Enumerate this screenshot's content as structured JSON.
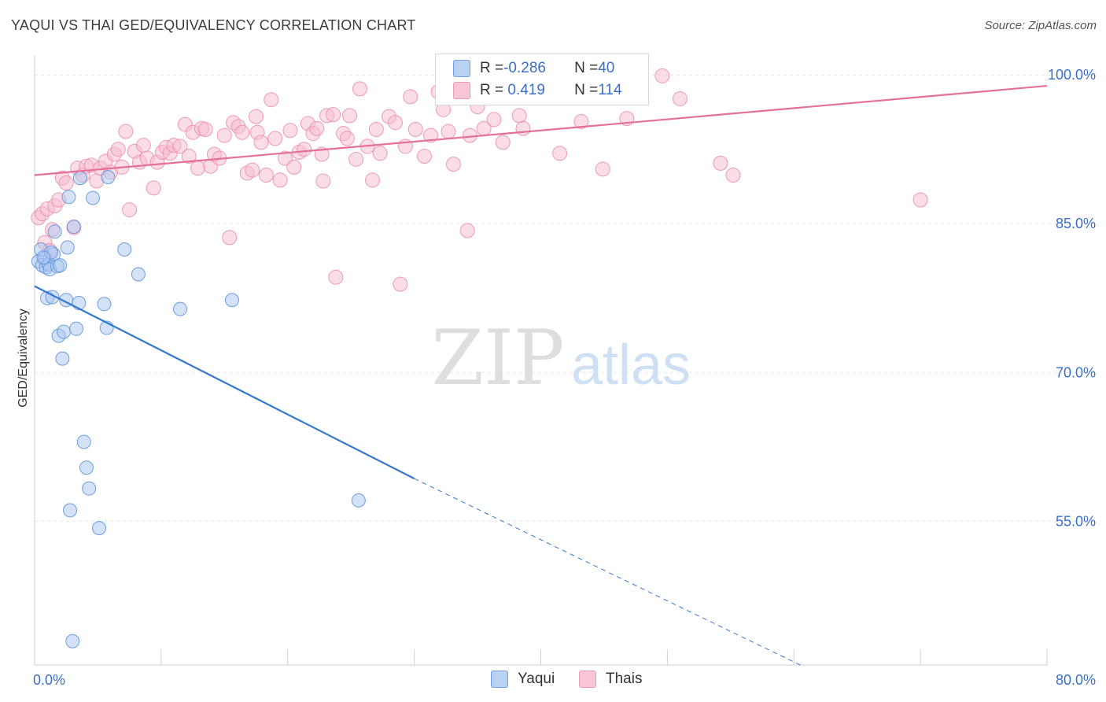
{
  "header": {
    "title": "YAQUI VS THAI GED/EQUIVALENCY CORRELATION CHART",
    "source": "Source: ZipAtlas.com"
  },
  "watermark": {
    "zip": "ZIP",
    "atlas": "atlas"
  },
  "legend": {
    "rows": [
      {
        "r_label": "R = ",
        "r_value": "-0.286",
        "n_label": "N = ",
        "n_value": "40"
      },
      {
        "r_label": "R = ",
        "r_value": " 0.419",
        "n_label": "N = ",
        "n_value": "114"
      }
    ]
  },
  "colors": {
    "yaqui_fill": "#a9c6f0",
    "yaqui_stroke": "#5f93dd",
    "yaqui_line": "#3577d0",
    "thais_fill": "#f7bccd",
    "thais_stroke": "#ec8fad",
    "thais_line": "#e4709a",
    "tick_label": "#3a6fc9",
    "grid": "#e6e6e6"
  },
  "chart_data": {
    "type": "scatter",
    "xlabel": "",
    "ylabel": "GED/Equivalency",
    "x_ticks": [
      {
        "value": 0,
        "label": "0.0%"
      },
      {
        "value": 80,
        "label": "80.0%"
      }
    ],
    "y_ticks": [
      {
        "value": 55,
        "label": "55.0%"
      },
      {
        "value": 70,
        "label": "70.0%"
      },
      {
        "value": 85,
        "label": "85.0%"
      },
      {
        "value": 100,
        "label": "100.0%"
      }
    ],
    "xlim": [
      0,
      80
    ],
    "ylim": [
      40.5,
      102
    ],
    "grid": true,
    "legend_position": "top-center",
    "series": [
      {
        "name": "Yaqui",
        "trend": {
          "x0": 0,
          "y0": 78.7,
          "x1": 30,
          "y1": 59.3,
          "dash_to_x": 60.5,
          "dash_to_y": 40.5
        },
        "points": [
          [
            0.3,
            81.2
          ],
          [
            0.5,
            82.4
          ],
          [
            0.6,
            80.8
          ],
          [
            0.8,
            81.5
          ],
          [
            0.9,
            80.6
          ],
          [
            1.0,
            77.5
          ],
          [
            1.1,
            80.9
          ],
          [
            1.2,
            80.4
          ],
          [
            1.4,
            77.6
          ],
          [
            1.5,
            81.9
          ],
          [
            1.6,
            84.2
          ],
          [
            1.8,
            80.7
          ],
          [
            1.9,
            73.7
          ],
          [
            2.0,
            80.8
          ],
          [
            2.2,
            71.4
          ],
          [
            2.3,
            74.1
          ],
          [
            2.5,
            77.3
          ],
          [
            2.6,
            82.6
          ],
          [
            2.7,
            87.7
          ],
          [
            2.8,
            56.1
          ],
          [
            3.0,
            42.9
          ],
          [
            3.1,
            84.7
          ],
          [
            3.3,
            74.4
          ],
          [
            3.5,
            77.0
          ],
          [
            3.6,
            89.6
          ],
          [
            3.9,
            63.0
          ],
          [
            4.1,
            60.4
          ],
          [
            4.3,
            58.3
          ],
          [
            4.6,
            87.6
          ],
          [
            5.1,
            54.3
          ],
          [
            5.5,
            76.9
          ],
          [
            5.7,
            74.5
          ],
          [
            5.8,
            89.7
          ],
          [
            7.1,
            82.4
          ],
          [
            8.2,
            79.9
          ],
          [
            11.5,
            76.4
          ],
          [
            15.6,
            77.3
          ],
          [
            25.6,
            57.1
          ],
          [
            1.3,
            82.1
          ],
          [
            0.7,
            81.6
          ]
        ]
      },
      {
        "name": "Thais",
        "trend": {
          "x0": 0,
          "y0": 89.9,
          "x1": 80,
          "y1": 98.9
        },
        "points": [
          [
            0.3,
            85.6
          ],
          [
            0.6,
            86.0
          ],
          [
            0.8,
            83.1
          ],
          [
            1.0,
            86.5
          ],
          [
            1.2,
            82.3
          ],
          [
            1.4,
            84.4
          ],
          [
            1.6,
            86.8
          ],
          [
            1.9,
            87.4
          ],
          [
            2.2,
            89.6
          ],
          [
            2.5,
            89.1
          ],
          [
            3.1,
            84.6
          ],
          [
            3.4,
            90.6
          ],
          [
            3.8,
            89.9
          ],
          [
            4.1,
            90.8
          ],
          [
            4.5,
            90.9
          ],
          [
            4.9,
            89.3
          ],
          [
            5.2,
            90.6
          ],
          [
            5.6,
            91.3
          ],
          [
            6.0,
            90.2
          ],
          [
            6.3,
            92.0
          ],
          [
            6.6,
            92.5
          ],
          [
            6.9,
            90.7
          ],
          [
            7.2,
            94.3
          ],
          [
            7.5,
            86.4
          ],
          [
            7.9,
            92.3
          ],
          [
            8.3,
            91.2
          ],
          [
            8.6,
            92.9
          ],
          [
            8.9,
            91.6
          ],
          [
            9.4,
            88.6
          ],
          [
            9.7,
            91.2
          ],
          [
            10.1,
            92.2
          ],
          [
            10.4,
            92.7
          ],
          [
            10.7,
            92.1
          ],
          [
            11.0,
            92.9
          ],
          [
            11.5,
            92.8
          ],
          [
            11.9,
            95.0
          ],
          [
            12.2,
            91.8
          ],
          [
            12.5,
            94.2
          ],
          [
            12.9,
            90.6
          ],
          [
            13.2,
            94.6
          ],
          [
            13.5,
            94.5
          ],
          [
            13.9,
            90.8
          ],
          [
            14.2,
            92.0
          ],
          [
            14.6,
            91.6
          ],
          [
            15.0,
            93.9
          ],
          [
            15.4,
            83.6
          ],
          [
            15.7,
            95.2
          ],
          [
            16.1,
            94.8
          ],
          [
            16.4,
            94.2
          ],
          [
            16.8,
            90.1
          ],
          [
            17.2,
            90.4
          ],
          [
            17.6,
            94.2
          ],
          [
            17.9,
            93.2
          ],
          [
            18.3,
            89.9
          ],
          [
            18.7,
            97.5
          ],
          [
            19.0,
            93.6
          ],
          [
            19.4,
            89.4
          ],
          [
            19.8,
            91.6
          ],
          [
            20.2,
            94.4
          ],
          [
            20.5,
            90.7
          ],
          [
            20.9,
            92.2
          ],
          [
            21.3,
            92.5
          ],
          [
            21.6,
            95.1
          ],
          [
            22.0,
            94.1
          ],
          [
            22.3,
            94.6
          ],
          [
            22.7,
            92.0
          ],
          [
            22.8,
            89.3
          ],
          [
            23.1,
            95.9
          ],
          [
            23.6,
            96.0
          ],
          [
            23.8,
            79.6
          ],
          [
            24.4,
            94.1
          ],
          [
            24.7,
            93.6
          ],
          [
            24.9,
            95.9
          ],
          [
            25.4,
            91.5
          ],
          [
            25.7,
            98.6
          ],
          [
            26.3,
            92.8
          ],
          [
            26.7,
            89.4
          ],
          [
            27.0,
            94.5
          ],
          [
            27.3,
            92.1
          ],
          [
            28.0,
            95.8
          ],
          [
            28.5,
            95.2
          ],
          [
            28.9,
            78.9
          ],
          [
            29.3,
            92.8
          ],
          [
            29.7,
            97.8
          ],
          [
            30.1,
            94.5
          ],
          [
            30.8,
            91.8
          ],
          [
            31.3,
            93.9
          ],
          [
            31.9,
            98.3
          ],
          [
            32.3,
            96.5
          ],
          [
            32.7,
            94.3
          ],
          [
            33.1,
            91.0
          ],
          [
            33.6,
            97.7
          ],
          [
            34.2,
            84.3
          ],
          [
            34.4,
            93.9
          ],
          [
            35.0,
            96.8
          ],
          [
            35.5,
            94.6
          ],
          [
            36.3,
            95.5
          ],
          [
            37.0,
            93.2
          ],
          [
            38.3,
            95.9
          ],
          [
            38.6,
            94.6
          ],
          [
            39.3,
            97.9
          ],
          [
            41.5,
            92.1
          ],
          [
            42.2,
            98.0
          ],
          [
            43.2,
            95.3
          ],
          [
            44.9,
            90.5
          ],
          [
            46.8,
            95.6
          ],
          [
            47.3,
            98.1
          ],
          [
            47.6,
            97.8
          ],
          [
            49.6,
            99.9
          ],
          [
            51.0,
            97.6
          ],
          [
            54.2,
            91.1
          ],
          [
            55.2,
            89.9
          ],
          [
            70.0,
            87.4
          ],
          [
            17.5,
            95.8
          ]
        ]
      }
    ]
  }
}
